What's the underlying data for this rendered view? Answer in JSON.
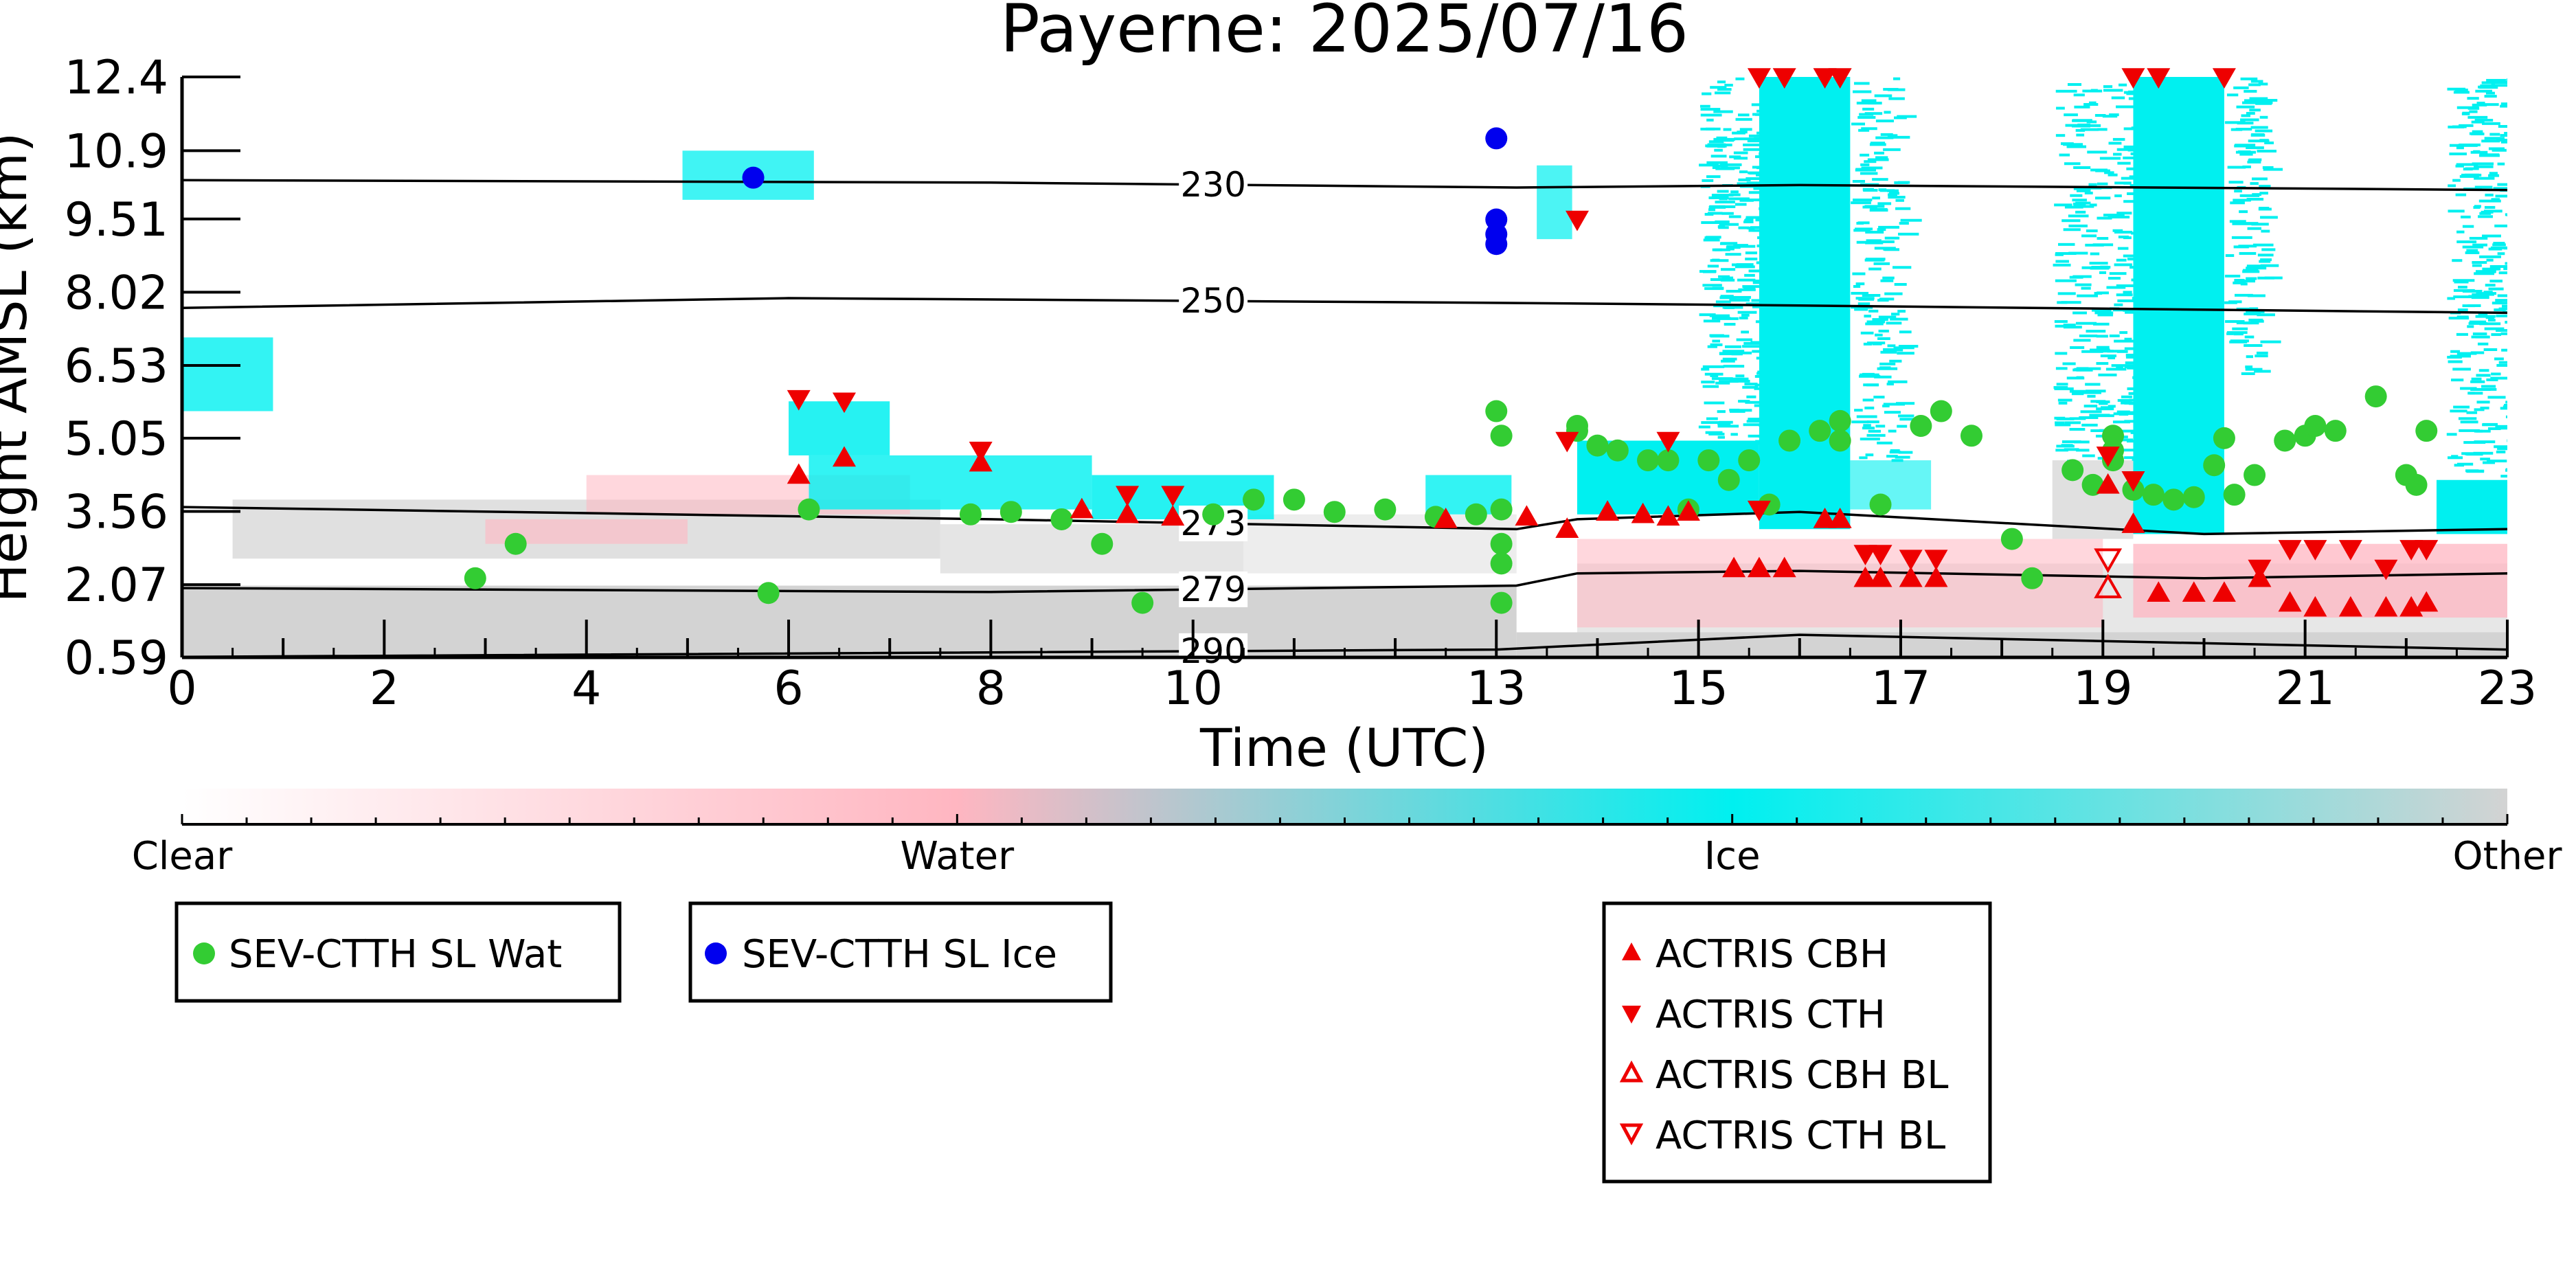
{
  "chart_data": {
    "type": "scatter",
    "title": "Payerne: 2025/07/16",
    "xlabel": "Time (UTC)",
    "ylabel": "Height AMSL (km)",
    "xlim": [
      0,
      23
    ],
    "ylim": [
      0.59,
      12.4
    ],
    "x_ticks": [
      "0",
      "2",
      "4",
      "6",
      "8",
      "10",
      "13",
      "15",
      "17",
      "19",
      "21",
      "23"
    ],
    "y_ticks": [
      "0.59",
      "2.07",
      "3.56",
      "5.05",
      "6.53",
      "8.02",
      "9.51",
      "10.9",
      "12.4"
    ],
    "colorbar": {
      "labels": [
        "Clear",
        "Water",
        "Ice",
        "Other"
      ],
      "colors": [
        "#ffffff",
        "#ffb6c1",
        "#00f0f0",
        "#d3d3d3"
      ]
    },
    "isotherms": [
      {
        "label": "230",
        "points": [
          [
            0,
            10.3
          ],
          [
            8,
            10.25
          ],
          [
            13.2,
            10.15
          ],
          [
            16,
            10.2
          ],
          [
            23,
            10.1
          ]
        ]
      },
      {
        "label": "250",
        "points": [
          [
            0,
            7.7
          ],
          [
            6,
            7.9
          ],
          [
            13.2,
            7.8
          ],
          [
            16,
            7.75
          ],
          [
            23,
            7.6
          ]
        ]
      },
      {
        "label": "273",
        "points": [
          [
            0,
            3.65
          ],
          [
            8,
            3.4
          ],
          [
            13.2,
            3.2
          ],
          [
            13.8,
            3.4
          ],
          [
            16,
            3.55
          ],
          [
            20,
            3.1
          ],
          [
            23,
            3.2
          ]
        ]
      },
      {
        "label": "279",
        "points": [
          [
            0,
            2.0
          ],
          [
            8,
            1.92
          ],
          [
            13.2,
            2.05
          ],
          [
            13.8,
            2.3
          ],
          [
            16,
            2.35
          ],
          [
            20,
            2.2
          ],
          [
            23,
            2.3
          ]
        ]
      },
      {
        "label": "290",
        "points": [
          [
            0,
            0.6
          ],
          [
            13,
            0.75
          ],
          [
            16,
            1.05
          ],
          [
            23,
            0.75
          ]
        ]
      }
    ],
    "series": [
      {
        "name": "SEV-CTTH SL Wat",
        "color": "#33cc33",
        "marker": "circle",
        "x": [
          2.9,
          3.3,
          5.8,
          6.2,
          7.8,
          8.2,
          8.7,
          9.1,
          9.5,
          10.2,
          10.6,
          11.0,
          11.4,
          11.9,
          12.4,
          12.8,
          13.0,
          13.05,
          13.05,
          13.05,
          13.05,
          13.05,
          13.8,
          13.8,
          14.0,
          14.2,
          14.5,
          14.7,
          14.9,
          15.1,
          15.3,
          15.5,
          15.7,
          15.9,
          16.2,
          16.4,
          16.4,
          16.8,
          17.2,
          17.4,
          17.7,
          18.1,
          18.3,
          18.7,
          18.9,
          19.1,
          19.1,
          19.1,
          19.3,
          19.5,
          19.7,
          19.9,
          20.1,
          20.2,
          20.3,
          20.5,
          20.8,
          21.0,
          21.1,
          21.3,
          21.7,
          22.0,
          22.1,
          22.2
        ],
        "y": [
          2.2,
          2.9,
          1.9,
          3.6,
          3.5,
          3.55,
          3.4,
          2.9,
          1.7,
          3.5,
          3.8,
          3.8,
          3.55,
          3.6,
          3.45,
          3.5,
          5.6,
          5.1,
          3.6,
          2.9,
          2.5,
          1.7,
          5.3,
          5.2,
          4.9,
          4.8,
          4.6,
          4.6,
          3.6,
          4.6,
          4.2,
          4.6,
          3.7,
          5.0,
          5.2,
          5.4,
          5.0,
          3.7,
          5.3,
          5.6,
          5.1,
          3.0,
          2.2,
          4.4,
          4.1,
          4.6,
          4.8,
          5.1,
          4.0,
          3.9,
          3.8,
          3.85,
          4.5,
          5.05,
          3.9,
          4.3,
          5.0,
          5.1,
          5.3,
          5.2,
          5.9,
          4.3,
          4.1,
          5.2
        ],
        "note_fix": "values sorted by time"
      },
      {
        "name": "SEV-CTTH SL Ice",
        "color": "#0000ee",
        "marker": "circle",
        "x": [
          5.65,
          13.0,
          13.0,
          13.0,
          13.0
        ],
        "y": [
          10.35,
          11.15,
          9.5,
          9.2,
          9.0
        ]
      },
      {
        "name": "ACTRIS CBH",
        "color": "#ee0000",
        "marker": "triangle-up",
        "x": [
          6.1,
          6.55,
          7.9,
          8.9,
          9.35,
          9.8,
          12.5,
          13.3,
          13.7,
          14.1,
          14.45,
          14.7,
          14.9,
          15.35,
          15.6,
          15.85,
          16.25,
          16.4,
          16.65,
          16.8,
          17.1,
          17.35,
          19.05,
          19.3,
          19.55,
          19.9,
          20.2,
          20.55,
          20.85,
          21.1,
          21.45,
          21.8,
          22.05,
          22.2
        ],
        "y": [
          4.3,
          4.65,
          4.55,
          3.6,
          3.5,
          3.45,
          3.4,
          3.45,
          3.2,
          3.55,
          3.5,
          3.45,
          3.55,
          2.4,
          2.4,
          2.4,
          3.4,
          3.4,
          2.2,
          2.2,
          2.2,
          2.2,
          4.1,
          3.3,
          1.9,
          1.9,
          1.9,
          2.2,
          1.7,
          1.6,
          1.6,
          1.6,
          1.6,
          1.7
        ]
      },
      {
        "name": "ACTRIS CTH",
        "color": "#ee0000",
        "marker": "triangle-down",
        "x": [
          6.1,
          6.55,
          7.9,
          9.35,
          9.8,
          13.8,
          13.7,
          14.7,
          15.6,
          15.6,
          15.85,
          16.25,
          16.4,
          16.65,
          16.8,
          17.1,
          17.35,
          19.05,
          19.3,
          19.3,
          19.55,
          20.2,
          20.55,
          20.85,
          21.1,
          21.45,
          21.8,
          22.05,
          22.2
        ],
        "y": [
          5.85,
          5.8,
          4.8,
          3.9,
          3.9,
          9.5,
          5.0,
          5.0,
          12.4,
          3.6,
          12.4,
          12.4,
          12.4,
          2.7,
          2.7,
          2.6,
          2.6,
          4.7,
          12.4,
          4.2,
          12.4,
          12.4,
          2.4,
          2.8,
          2.8,
          2.8,
          2.4,
          2.8,
          2.8
        ]
      },
      {
        "name": "ACTRIS CBH BL",
        "color": "#ee0000",
        "marker": "triangle-up-open",
        "x": [
          19.05
        ],
        "y": [
          2.0
        ]
      },
      {
        "name": "ACTRIS CTH BL",
        "color": "#ee0000",
        "marker": "triangle-down-open",
        "x": [
          19.05
        ],
        "y": [
          2.6
        ]
      }
    ],
    "legend": {
      "left": [
        "SEV-CTTH SL Wat",
        "SEV-CTTH SL Ice"
      ],
      "right": [
        "ACTRIS CBH",
        "ACTRIS CTH",
        "ACTRIS CBH BL",
        "ACTRIS CTH BL"
      ]
    }
  }
}
